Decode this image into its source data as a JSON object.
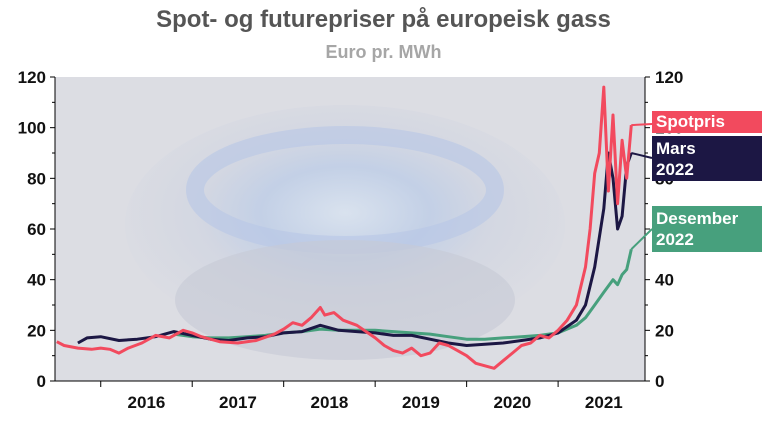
{
  "chart_data": {
    "type": "line",
    "title": "Spot- og futurepriser på europeisk gass",
    "subtitle": "Euro pr. MWh",
    "xlabel": "",
    "ylabel": "",
    "x_tick_labels": [
      "2016",
      "2017",
      "2018",
      "2019",
      "2020",
      "2021"
    ],
    "y_ticks": [
      0,
      20,
      40,
      60,
      80,
      100,
      120
    ],
    "ylim": [
      0,
      120
    ],
    "xlim": [
      2015.5,
      2021.95
    ],
    "grid": false,
    "series": [
      {
        "name": "Spotpris",
        "color": "#f24a5e",
        "points": [
          [
            2015.52,
            15.5
          ],
          [
            2015.6,
            14
          ],
          [
            2015.75,
            13
          ],
          [
            2015.9,
            12.5
          ],
          [
            2016.0,
            13
          ],
          [
            2016.1,
            12.5
          ],
          [
            2016.2,
            11
          ],
          [
            2016.3,
            13
          ],
          [
            2016.45,
            15
          ],
          [
            2016.6,
            18
          ],
          [
            2016.75,
            17
          ],
          [
            2016.9,
            20
          ],
          [
            2017.0,
            19
          ],
          [
            2017.1,
            17.5
          ],
          [
            2017.3,
            15.5
          ],
          [
            2017.5,
            15
          ],
          [
            2017.7,
            16
          ],
          [
            2017.9,
            18.5
          ],
          [
            2018.0,
            20.5
          ],
          [
            2018.1,
            23
          ],
          [
            2018.2,
            22
          ],
          [
            2018.3,
            25
          ],
          [
            2018.4,
            29
          ],
          [
            2018.45,
            26
          ],
          [
            2018.55,
            27
          ],
          [
            2018.65,
            24
          ],
          [
            2018.8,
            22
          ],
          [
            2019.0,
            17
          ],
          [
            2019.1,
            14
          ],
          [
            2019.2,
            12
          ],
          [
            2019.3,
            11
          ],
          [
            2019.4,
            13
          ],
          [
            2019.5,
            10
          ],
          [
            2019.6,
            11
          ],
          [
            2019.7,
            15
          ],
          [
            2019.8,
            14
          ],
          [
            2019.9,
            12
          ],
          [
            2020.0,
            10
          ],
          [
            2020.1,
            7
          ],
          [
            2020.2,
            6
          ],
          [
            2020.3,
            5
          ],
          [
            2020.4,
            8
          ],
          [
            2020.5,
            11
          ],
          [
            2020.6,
            14
          ],
          [
            2020.7,
            15
          ],
          [
            2020.8,
            18
          ],
          [
            2020.9,
            17
          ],
          [
            2021.0,
            20
          ],
          [
            2021.1,
            24
          ],
          [
            2021.2,
            30
          ],
          [
            2021.3,
            45
          ],
          [
            2021.35,
            60
          ],
          [
            2021.4,
            82
          ],
          [
            2021.45,
            90
          ],
          [
            2021.5,
            116
          ],
          [
            2021.55,
            75
          ],
          [
            2021.6,
            105
          ],
          [
            2021.65,
            70
          ],
          [
            2021.7,
            95
          ],
          [
            2021.75,
            80
          ],
          [
            2021.8,
            101
          ]
        ]
      },
      {
        "name": "Mars 2022",
        "color": "#1c1744",
        "points": [
          [
            2015.75,
            15
          ],
          [
            2015.85,
            17
          ],
          [
            2016.0,
            17.5
          ],
          [
            2016.2,
            16
          ],
          [
            2016.4,
            16.5
          ],
          [
            2016.6,
            17.5
          ],
          [
            2016.8,
            19.5
          ],
          [
            2017.0,
            18
          ],
          [
            2017.2,
            16.5
          ],
          [
            2017.4,
            16
          ],
          [
            2017.6,
            17
          ],
          [
            2017.8,
            17.5
          ],
          [
            2018.0,
            19
          ],
          [
            2018.2,
            19.5
          ],
          [
            2018.4,
            22
          ],
          [
            2018.6,
            20
          ],
          [
            2018.8,
            19.5
          ],
          [
            2019.0,
            19
          ],
          [
            2019.2,
            18
          ],
          [
            2019.4,
            18
          ],
          [
            2019.6,
            16.5
          ],
          [
            2019.8,
            15
          ],
          [
            2020.0,
            14
          ],
          [
            2020.2,
            14.5
          ],
          [
            2020.4,
            15
          ],
          [
            2020.6,
            16
          ],
          [
            2020.8,
            17
          ],
          [
            2021.0,
            19
          ],
          [
            2021.2,
            24
          ],
          [
            2021.3,
            30
          ],
          [
            2021.4,
            45
          ],
          [
            2021.5,
            68
          ],
          [
            2021.55,
            90
          ],
          [
            2021.6,
            80
          ],
          [
            2021.65,
            60
          ],
          [
            2021.7,
            65
          ],
          [
            2021.75,
            85
          ],
          [
            2021.8,
            90
          ]
        ]
      },
      {
        "name": "Desember 2022",
        "color": "#47a07d",
        "points": [
          [
            2016.8,
            18.5
          ],
          [
            2017.0,
            17.5
          ],
          [
            2017.2,
            17
          ],
          [
            2017.4,
            17
          ],
          [
            2017.6,
            17.5
          ],
          [
            2017.8,
            18
          ],
          [
            2018.0,
            19
          ],
          [
            2018.2,
            19.5
          ],
          [
            2018.4,
            20.5
          ],
          [
            2018.6,
            20
          ],
          [
            2018.8,
            20
          ],
          [
            2019.0,
            20
          ],
          [
            2019.2,
            19.5
          ],
          [
            2019.4,
            19
          ],
          [
            2019.6,
            18.5
          ],
          [
            2019.8,
            17.5
          ],
          [
            2020.0,
            16.5
          ],
          [
            2020.2,
            16.5
          ],
          [
            2020.4,
            17
          ],
          [
            2020.6,
            17.5
          ],
          [
            2020.8,
            18
          ],
          [
            2021.0,
            19
          ],
          [
            2021.2,
            22
          ],
          [
            2021.3,
            25
          ],
          [
            2021.4,
            30
          ],
          [
            2021.5,
            35
          ],
          [
            2021.6,
            40
          ],
          [
            2021.65,
            38
          ],
          [
            2021.7,
            42
          ],
          [
            2021.75,
            44
          ],
          [
            2021.8,
            52
          ]
        ]
      }
    ]
  },
  "labels": {
    "spot": "Spotpris",
    "mars": "Mars\n2022",
    "des": "Desember\n2022"
  }
}
